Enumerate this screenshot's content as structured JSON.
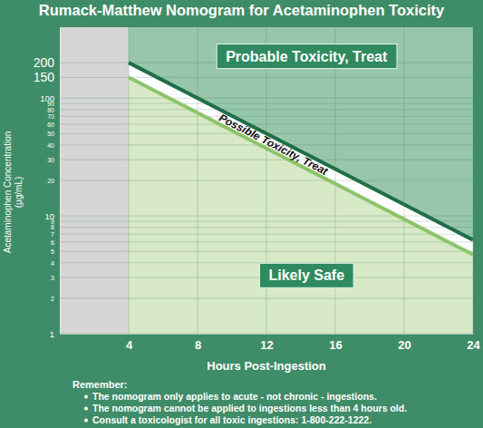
{
  "chart_data": {
    "type": "line",
    "title": "Rumack-Matthew Nomogram for Acetaminophen Toxicity",
    "x_label": "Hours Post-Ingestion",
    "y_label": [
      "Acetaminophen Concentration",
      "(μg/mL)"
    ],
    "x": [
      4,
      24
    ],
    "series": [
      {
        "color": "#1f6e48",
        "values": [
          200,
          6.25
        ]
      },
      {
        "color": "#8dc46b",
        "values": [
          150,
          4.69
        ]
      }
    ],
    "xlim": [
      0,
      24
    ],
    "ylim": [
      1,
      400
    ],
    "xticks": [
      4,
      8,
      12,
      16,
      20,
      24
    ],
    "yticks": [
      200,
      150,
      100,
      90,
      80,
      70,
      60,
      50,
      40,
      30,
      20,
      10,
      9,
      8,
      7,
      6,
      5,
      4,
      3,
      2,
      1
    ],
    "log": "y",
    "grid": true,
    "annotations": [
      "Probable Toxicity, Treat",
      "Possible Toxicity, Treat",
      "Likely Safe"
    ]
  },
  "footer": {
    "heading": "Remember:",
    "items": [
      "The nomogram only applies to acute - not chronic - ingestions.",
      "The nomogram cannot be applied to ingestions less than 4 hours old.",
      "Consult a toxicologist for all toxic ingestions: 1-800-222-1222."
    ]
  }
}
